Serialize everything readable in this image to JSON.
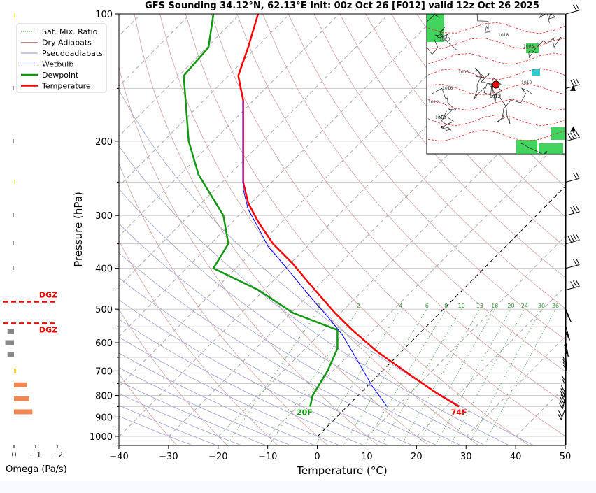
{
  "chart_data": {
    "type": "line",
    "title": "GFS Sounding 34.12°N, 62.13°E Init: 00z Oct 26 [F012] valid 12z Oct 26 2025",
    "xlabel": "Temperature (°C)",
    "ylabel": "Pressure (hPa)",
    "xlim": [
      -40,
      50
    ],
    "ylim": [
      1050,
      100
    ],
    "y_scale": "log",
    "x_ticks": [
      "−40",
      "−30",
      "−20",
      "−10",
      "0",
      "10",
      "20",
      "30",
      "40",
      "50"
    ],
    "y_ticks": [
      "100",
      "200",
      "300",
      "400",
      "500",
      "600",
      "700",
      "800",
      "900",
      "1000"
    ],
    "grid": true,
    "legend_position": "top-left",
    "legend": [
      {
        "name": "Sat. Mix. Ratio",
        "color": "#3a9a3a"
      },
      {
        "name": "Dry Adiabats",
        "color": "#d08080"
      },
      {
        "name": "Pseudoadiabats",
        "color": "#9090c0"
      },
      {
        "name": "Wetbulb",
        "color": "#0000ff"
      },
      {
        "name": "Dewpoint",
        "color": "#119911"
      },
      {
        "name": "Temperature",
        "color": "#ff0000"
      }
    ],
    "series": [
      {
        "name": "Temperature",
        "points": [
          [
            28.5,
            850
          ],
          [
            24,
            790
          ],
          [
            19,
            720
          ],
          [
            12,
            630
          ],
          [
            7,
            560
          ],
          [
            3.5,
            510
          ],
          [
            0.5,
            465
          ],
          [
            -2,
            430
          ],
          [
            -5,
            390
          ],
          [
            -9,
            350
          ],
          [
            -12,
            310
          ],
          [
            -14,
            280
          ],
          [
            -15,
            250
          ],
          [
            -15,
            220
          ],
          [
            -15,
            190
          ],
          [
            -15,
            160
          ],
          [
            -16,
            140
          ],
          [
            -14,
            120
          ],
          [
            -12,
            100
          ]
        ]
      },
      {
        "name": "Dewpoint",
        "points": [
          [
            -1.5,
            850
          ],
          [
            -1,
            800
          ],
          [
            2,
            700
          ],
          [
            4,
            620
          ],
          [
            4,
            560
          ],
          [
            -5,
            510
          ],
          [
            -12,
            450
          ],
          [
            -21,
            400
          ],
          [
            -18,
            350
          ],
          [
            -19,
            300
          ],
          [
            -24,
            240
          ],
          [
            -26,
            200
          ],
          [
            -27,
            140
          ],
          [
            -22,
            120
          ],
          [
            -21,
            100
          ]
        ]
      },
      {
        "name": "Wetbulb",
        "points": [
          [
            14,
            850
          ],
          [
            11,
            760
          ],
          [
            8,
            660
          ],
          [
            5,
            575
          ],
          [
            2,
            520
          ],
          [
            -1,
            475
          ],
          [
            -4,
            430
          ],
          [
            -7,
            390
          ],
          [
            -10,
            355
          ],
          [
            -12,
            320
          ],
          [
            -14,
            290
          ],
          [
            -15,
            260
          ],
          [
            -15,
            220
          ],
          [
            -15,
            190
          ],
          [
            -15,
            160
          ]
        ]
      }
    ],
    "annotations": {
      "surface_temp": "74F",
      "surface_dewpoint": "20F"
    },
    "mixing_ratio_labels": [
      "1",
      "2",
      "4",
      "6",
      "8",
      "10",
      "13",
      "16",
      "20",
      "24",
      "30",
      "36"
    ],
    "omega": {
      "xlabel": "Omega (Pa/s)",
      "x_ticks": [
        "0",
        "−1",
        "−2"
      ],
      "dgz_label": "DGZ",
      "dgz_pressures": [
        480,
        540
      ],
      "bars": [
        {
          "p": 565,
          "value": 0.3
        },
        {
          "p": 600,
          "value": 0.4
        },
        {
          "p": 640,
          "value": 0.3
        },
        {
          "p": 700,
          "value": -0.1
        },
        {
          "p": 755,
          "value": -0.6
        },
        {
          "p": 815,
          "value": -0.7
        },
        {
          "p": 875,
          "value": -0.85
        }
      ]
    },
    "wind_barbs": {
      "side": "right",
      "pressures": [
        100,
        150,
        200,
        250,
        300,
        350,
        400,
        450,
        500,
        550,
        600,
        650,
        700,
        750,
        800,
        850
      ]
    }
  },
  "inset_map": {
    "isobar_labels": [
      "1018",
      "1010",
      "1008",
      "1012",
      "1016",
      "1010",
      "1008",
      "1012",
      "1016"
    ]
  }
}
